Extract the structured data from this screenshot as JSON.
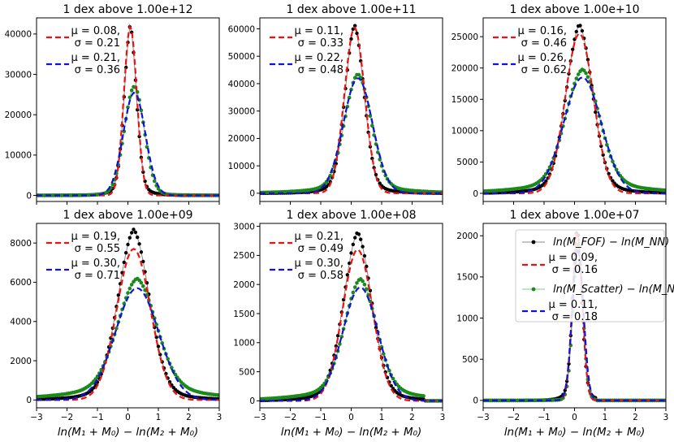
{
  "chart_data": {
    "type": "line",
    "x_range": [
      -3,
      3
    ],
    "x_ticks": [
      "−3",
      "−2",
      "−1",
      "0",
      "1",
      "2",
      "3"
    ],
    "xlabel": "ln(M₁ + M₀) − ln(M₂ + M₀)",
    "legend": {
      "fof_label": "ln(M_FOF) − ln(M_NN)",
      "scatter_label": "ln(M_Scatter) − ln(M_NN)"
    },
    "colors": {
      "fof": "#000000",
      "fof_line": "#888888",
      "scatter": "#1a8a1a",
      "scatter_line": "#7fc97f",
      "fit_fof": "#ee1111",
      "fit_scatter": "#1111dd"
    },
    "panels": [
      {
        "title": "1 dex above 1.00e+12",
        "ylim": [
          -1500,
          44000
        ],
        "y_ticks": [
          0,
          10000,
          20000,
          30000,
          40000
        ],
        "fit_fof": {
          "mu_label": "μ = 0.08,",
          "sigma_label": "σ = 0.21",
          "mu": 0.08,
          "sigma": 0.21,
          "peak": 42000
        },
        "fit_scatter": {
          "mu_label": "μ = 0.21,",
          "sigma_label": "σ = 0.36",
          "mu": 0.21,
          "sigma": 0.36,
          "peak": 25500
        },
        "fof_peak": 42300,
        "scatter_peak": 27000,
        "tail": 0.03
      },
      {
        "title": "1 dex above 1.00e+11",
        "ylim": [
          -3000,
          64000
        ],
        "y_ticks": [
          0,
          10000,
          20000,
          30000,
          40000,
          50000,
          60000
        ],
        "fit_fof": {
          "mu_label": "μ = 0.11,",
          "sigma_label": "σ = 0.33",
          "mu": 0.11,
          "sigma": 0.33,
          "peak": 60500
        },
        "fit_scatter": {
          "mu_label": "μ = 0.22,",
          "sigma_label": "σ = 0.48",
          "mu": 0.22,
          "sigma": 0.48,
          "peak": 42000
        },
        "fof_peak": 61500,
        "scatter_peak": 43500,
        "tail": 0.12
      },
      {
        "title": "1 dex above 1.00e+10",
        "ylim": [
          -1300,
          28000
        ],
        "y_ticks": [
          0,
          5000,
          10000,
          15000,
          20000,
          25000
        ],
        "fit_fof": {
          "mu_label": "μ = 0.16,",
          "sigma_label": "σ = 0.46",
          "mu": 0.16,
          "sigma": 0.46,
          "peak": 25500
        },
        "fit_scatter": {
          "mu_label": "μ = 0.26,",
          "sigma_label": "σ = 0.62",
          "mu": 0.26,
          "sigma": 0.62,
          "peak": 18500
        },
        "fof_peak": 27000,
        "scatter_peak": 19800,
        "tail": 0.18
      },
      {
        "title": "1 dex above 1.00e+09",
        "ylim": [
          -400,
          9000
        ],
        "y_ticks": [
          0,
          2000,
          4000,
          6000,
          8000
        ],
        "fit_fof": {
          "mu_label": "μ = 0.19,",
          "sigma_label": "σ = 0.55",
          "mu": 0.19,
          "sigma": 0.55,
          "peak": 7700
        },
        "fit_scatter": {
          "mu_label": "μ = 0.30,",
          "sigma_label": "σ = 0.71",
          "mu": 0.3,
          "sigma": 0.71,
          "peak": 5700
        },
        "fof_peak": 8700,
        "scatter_peak": 6200,
        "tail": 0.22
      },
      {
        "title": "1 dex above 1.00e+08",
        "ylim": [
          -120,
          3050
        ],
        "y_ticks": [
          0,
          500,
          1000,
          1500,
          2000,
          2500,
          3000
        ],
        "fit_fof": {
          "mu_label": "μ = 0.21,",
          "sigma_label": "σ = 0.49",
          "mu": 0.21,
          "sigma": 0.49,
          "peak": 2600
        },
        "fit_scatter": {
          "mu_label": "μ = 0.30,",
          "sigma_label": "σ = 0.58",
          "mu": 0.3,
          "sigma": 0.58,
          "peak": 1950
        },
        "fof_peak": 2900,
        "scatter_peak": 2100,
        "tail": 0.2,
        "cutoff": 2.4
      },
      {
        "title": "1 dex above 1.00e+07",
        "ylim": [
          -90,
          2150
        ],
        "y_ticks": [
          0,
          500,
          1000,
          1500,
          2000
        ],
        "fit_fof": {
          "mu_label": "μ = 0.09,",
          "sigma_label": "σ = 0.16",
          "mu": 0.09,
          "sigma": 0.16,
          "peak": 2050
        },
        "fit_scatter": {
          "mu_label": "μ = 0.11,",
          "sigma_label": "σ = 0.18",
          "mu": 0.11,
          "sigma": 0.18,
          "peak": 1850
        },
        "fof_peak": 2100,
        "scatter_peak": 1900,
        "tail": 0.015,
        "cutoff": 0.7
      }
    ]
  }
}
